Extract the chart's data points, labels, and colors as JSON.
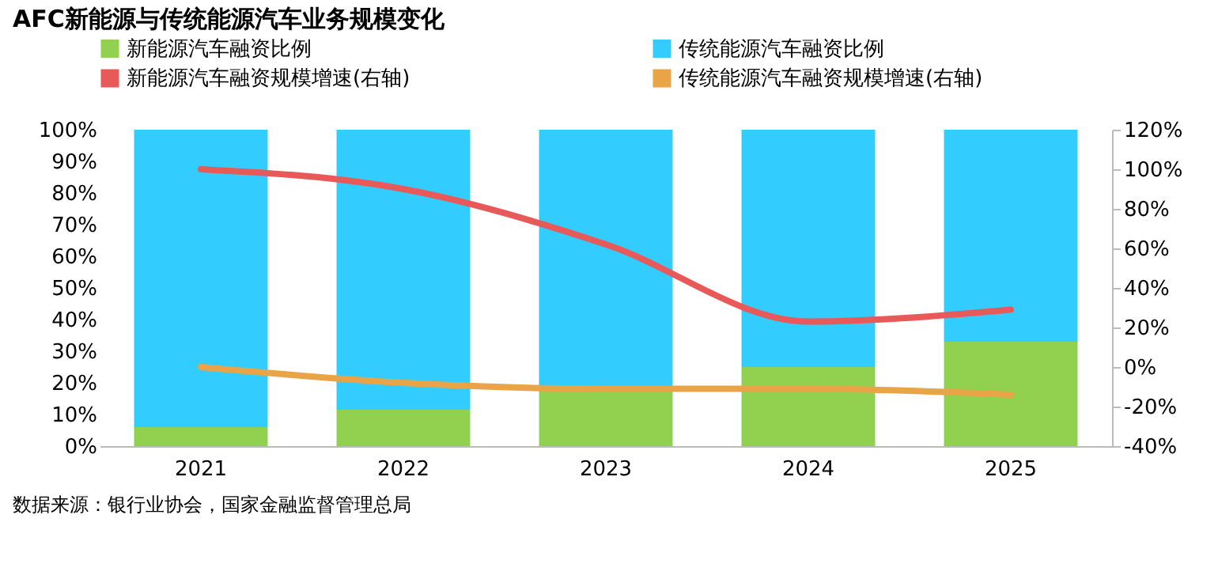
{
  "chart_data": {
    "type": "bar",
    "stacked": true,
    "title": "AFC新能源与传统能源汽车业务规模变化",
    "categories": [
      "2021",
      "2022",
      "2023",
      "2024",
      "2025"
    ],
    "series": [
      {
        "name": "新能源汽车融资比例",
        "color": "#92d050",
        "values": [
          6,
          11.5,
          19,
          25,
          33
        ]
      },
      {
        "name": "传统能源汽车融资比例",
        "color": "#33ccff",
        "values": [
          94,
          88.5,
          81,
          75,
          67
        ]
      },
      {
        "name": "新能源汽车融资规模增速(右轴)",
        "type": "line",
        "axis": "y2",
        "color": "#e8595a",
        "values": [
          100,
          90,
          62,
          23,
          29
        ]
      },
      {
        "name": "传统能源汽车融资规模增速(右轴)",
        "type": "line",
        "axis": "y2",
        "color": "#e8a446",
        "values": [
          0,
          -8,
          -11,
          -11,
          -14
        ]
      }
    ],
    "ylim": [
      0,
      100
    ],
    "yticks": [
      {
        "value": 0,
        "label": "0%"
      },
      {
        "value": 10,
        "label": "10%"
      },
      {
        "value": 20,
        "label": "20%"
      },
      {
        "value": 30,
        "label": "30%"
      },
      {
        "value": 40,
        "label": "40%"
      },
      {
        "value": 50,
        "label": "50%"
      },
      {
        "value": 60,
        "label": "60%"
      },
      {
        "value": 70,
        "label": "70%"
      },
      {
        "value": 80,
        "label": "80%"
      },
      {
        "value": 90,
        "label": "90%"
      },
      {
        "value": 100,
        "label": "100%"
      }
    ],
    "y2lim": [
      -40,
      120
    ],
    "y2ticks": [
      {
        "value": -40,
        "label": "-40%"
      },
      {
        "value": -20,
        "label": "-20%"
      },
      {
        "value": 0,
        "label": "0%"
      },
      {
        "value": 20,
        "label": "20%"
      },
      {
        "value": 40,
        "label": "40%"
      },
      {
        "value": 60,
        "label": "60%"
      },
      {
        "value": 80,
        "label": "80%"
      },
      {
        "value": 100,
        "label": "100%"
      },
      {
        "value": 120,
        "label": "120%"
      }
    ],
    "grid": false,
    "legend": "top",
    "marker": "none",
    "line_style": "solid",
    "annotations": [
      "数据来源：银行业协会，国家金融监督管理总局"
    ]
  }
}
